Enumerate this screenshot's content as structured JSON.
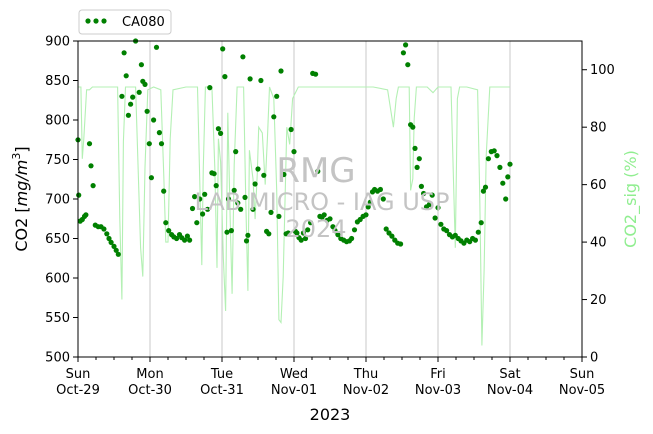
{
  "chart_data": {
    "type": "scatter",
    "xlabel": "2023",
    "ylabel": "CO2 [",
    "ylabel_unit": "mg/m",
    "ylabel_exp": "3",
    "ylabel_close": "]",
    "y2label": "CO2_sig (%)",
    "xlim_days": [
      0,
      7
    ],
    "ylim": [
      500,
      900
    ],
    "y2lim": [
      0,
      110
    ],
    "yticks": [
      500,
      550,
      600,
      650,
      700,
      750,
      800,
      850,
      900
    ],
    "y2ticks": [
      0,
      20,
      40,
      60,
      80,
      100
    ],
    "xticks": [
      {
        "day": "Sun",
        "date": "Oct-29"
      },
      {
        "day": "Mon",
        "date": "Oct-30"
      },
      {
        "day": "Tue",
        "date": "Oct-31"
      },
      {
        "day": "Wed",
        "date": "Nov-01"
      },
      {
        "day": "Thu",
        "date": "Nov-02"
      },
      {
        "day": "Fri",
        "date": "Nov-03"
      },
      {
        "day": "Sat",
        "date": "Nov-04"
      },
      {
        "day": "Sun",
        "date": "Nov-05"
      }
    ],
    "grid": "vertical",
    "legend": {
      "position": "top-left",
      "label": "CA080"
    },
    "series": [
      {
        "name": "CA080",
        "axis": "left",
        "style": "dots",
        "color": "#008000",
        "points": [
          [
            0.0,
            775
          ],
          [
            0.01,
            705
          ],
          [
            0.03,
            672
          ],
          [
            0.06,
            674
          ],
          [
            0.09,
            678
          ],
          [
            0.11,
            680
          ],
          [
            0.16,
            770
          ],
          [
            0.18,
            742
          ],
          [
            0.21,
            717
          ],
          [
            0.24,
            667
          ],
          [
            0.28,
            665
          ],
          [
            0.32,
            665
          ],
          [
            0.36,
            662
          ],
          [
            0.4,
            656
          ],
          [
            0.43,
            650
          ],
          [
            0.46,
            645
          ],
          [
            0.5,
            640
          ],
          [
            0.53,
            635
          ],
          [
            0.56,
            630
          ],
          [
            0.61,
            830
          ],
          [
            0.64,
            885
          ],
          [
            0.67,
            856
          ],
          [
            0.7,
            806
          ],
          [
            0.73,
            820
          ],
          [
            0.76,
            829
          ],
          [
            0.8,
            900
          ],
          [
            0.85,
            835
          ],
          [
            0.88,
            870
          ],
          [
            0.9,
            849
          ],
          [
            0.93,
            845
          ],
          [
            0.96,
            811
          ],
          [
            0.99,
            770
          ],
          [
            1.02,
            727
          ],
          [
            1.05,
            800
          ],
          [
            1.09,
            892
          ],
          [
            1.13,
            784
          ],
          [
            1.16,
            770
          ],
          [
            1.19,
            710
          ],
          [
            1.22,
            670
          ],
          [
            1.26,
            660
          ],
          [
            1.3,
            655
          ],
          [
            1.33,
            652
          ],
          [
            1.37,
            650
          ],
          [
            1.41,
            655
          ],
          [
            1.44,
            651
          ],
          [
            1.48,
            648
          ],
          [
            1.52,
            653
          ],
          [
            1.55,
            648
          ],
          [
            1.59,
            688
          ],
          [
            1.62,
            703
          ],
          [
            1.65,
            670
          ],
          [
            1.69,
            700
          ],
          [
            1.73,
            681
          ],
          [
            1.76,
            706
          ],
          [
            1.8,
            687
          ],
          [
            1.83,
            841
          ],
          [
            1.86,
            733
          ],
          [
            1.89,
            732
          ],
          [
            1.92,
            717
          ],
          [
            1.95,
            789
          ],
          [
            1.98,
            783
          ],
          [
            2.01,
            890
          ],
          [
            2.04,
            855
          ],
          [
            2.07,
            658
          ],
          [
            2.09,
            700
          ],
          [
            2.13,
            660
          ],
          [
            2.17,
            711
          ],
          [
            2.19,
            760
          ],
          [
            2.22,
            695
          ],
          [
            2.26,
            687
          ],
          [
            2.29,
            880
          ],
          [
            2.32,
            702
          ],
          [
            2.34,
            647
          ],
          [
            2.36,
            654
          ],
          [
            2.39,
            852
          ],
          [
            2.43,
            687
          ],
          [
            2.46,
            719
          ],
          [
            2.5,
            738
          ],
          [
            2.54,
            850
          ],
          [
            2.58,
            730
          ],
          [
            2.62,
            659
          ],
          [
            2.65,
            656
          ],
          [
            2.68,
            683
          ],
          [
            2.72,
            804
          ],
          [
            2.76,
            830
          ],
          [
            2.79,
            678
          ],
          [
            2.82,
            862
          ],
          [
            2.86,
            731
          ],
          [
            2.89,
            656
          ],
          [
            2.92,
            657
          ],
          [
            2.96,
            788
          ],
          [
            3.0,
            760
          ],
          [
            3.02,
            659
          ],
          [
            3.04,
            657
          ],
          [
            3.07,
            651
          ],
          [
            3.1,
            648
          ],
          [
            3.13,
            657
          ],
          [
            3.16,
            650
          ],
          [
            3.19,
            661
          ],
          [
            3.23,
            670
          ],
          [
            3.26,
            859
          ],
          [
            3.3,
            858
          ],
          [
            3.33,
            735
          ],
          [
            3.36,
            678
          ],
          [
            3.39,
            677
          ],
          [
            3.42,
            680
          ],
          [
            3.46,
            673
          ],
          [
            3.5,
            675
          ],
          [
            3.54,
            665
          ],
          [
            3.57,
            660
          ],
          [
            3.61,
            655
          ],
          [
            3.65,
            650
          ],
          [
            3.69,
            648
          ],
          [
            3.73,
            646
          ],
          [
            3.77,
            647
          ],
          [
            3.8,
            650
          ],
          [
            3.84,
            661
          ],
          [
            3.88,
            671
          ],
          [
            3.92,
            674
          ],
          [
            3.96,
            678
          ],
          [
            4.0,
            680
          ],
          [
            4.03,
            690
          ],
          [
            4.06,
            696
          ],
          [
            4.09,
            709
          ],
          [
            4.12,
            712
          ],
          [
            4.16,
            710
          ],
          [
            4.2,
            712
          ],
          [
            4.24,
            700
          ],
          [
            4.28,
            662
          ],
          [
            4.32,
            657
          ],
          [
            4.36,
            653
          ],
          [
            4.4,
            648
          ],
          [
            4.44,
            644
          ],
          [
            4.48,
            643
          ],
          [
            4.52,
            885
          ],
          [
            4.55,
            895
          ],
          [
            4.58,
            870
          ],
          [
            4.62,
            794
          ],
          [
            4.65,
            791
          ],
          [
            4.68,
            764
          ],
          [
            4.71,
            740
          ],
          [
            4.74,
            751
          ],
          [
            4.77,
            716
          ],
          [
            4.8,
            707
          ],
          [
            4.84,
            690
          ],
          [
            4.88,
            693
          ],
          [
            4.92,
            705
          ],
          [
            4.96,
            676
          ],
          [
            5.0,
            689
          ],
          [
            5.04,
            668
          ],
          [
            5.08,
            662
          ],
          [
            5.12,
            660
          ],
          [
            5.16,
            655
          ],
          [
            5.2,
            652
          ],
          [
            5.24,
            654
          ],
          [
            5.28,
            650
          ],
          [
            5.32,
            647
          ],
          [
            5.36,
            644
          ],
          [
            5.4,
            648
          ],
          [
            5.44,
            646
          ],
          [
            5.48,
            650
          ],
          [
            5.52,
            648
          ],
          [
            5.56,
            658
          ],
          [
            5.6,
            670
          ],
          [
            5.63,
            710
          ],
          [
            5.66,
            715
          ],
          [
            5.7,
            751
          ],
          [
            5.74,
            760
          ],
          [
            5.78,
            761
          ],
          [
            5.82,
            755
          ],
          [
            5.86,
            740
          ],
          [
            5.9,
            720
          ],
          [
            5.94,
            700
          ],
          [
            5.97,
            728
          ],
          [
            6.0,
            744
          ]
        ]
      },
      {
        "name": "CO2_sig",
        "axis": "right",
        "style": "line",
        "color": "#b4f0b4",
        "points": [
          [
            0.0,
            94
          ],
          [
            0.04,
            94
          ],
          [
            0.06,
            69
          ],
          [
            0.08,
            76
          ],
          [
            0.12,
            93
          ],
          [
            0.16,
            93
          ],
          [
            0.2,
            94
          ],
          [
            0.4,
            94
          ],
          [
            0.55,
            94
          ],
          [
            0.58,
            48
          ],
          [
            0.61,
            20
          ],
          [
            0.63,
            75
          ],
          [
            0.66,
            94
          ],
          [
            0.8,
            94
          ],
          [
            0.87,
            38
          ],
          [
            0.9,
            28
          ],
          [
            0.93,
            66
          ],
          [
            0.97,
            93
          ],
          [
            1.05,
            94
          ],
          [
            1.15,
            93
          ],
          [
            1.19,
            64
          ],
          [
            1.22,
            40
          ],
          [
            1.25,
            40
          ],
          [
            1.28,
            76
          ],
          [
            1.32,
            93
          ],
          [
            1.5,
            94
          ],
          [
            1.66,
            94
          ],
          [
            1.72,
            32
          ],
          [
            1.74,
            66
          ],
          [
            1.77,
            94
          ],
          [
            1.86,
            94
          ],
          [
            1.9,
            66
          ],
          [
            1.93,
            31
          ],
          [
            1.95,
            76
          ],
          [
            1.98,
            68
          ],
          [
            2.02,
            34
          ],
          [
            2.05,
            16
          ],
          [
            2.08,
            85
          ],
          [
            2.12,
            42
          ],
          [
            2.14,
            22
          ],
          [
            2.17,
            67
          ],
          [
            2.21,
            94
          ],
          [
            2.3,
            94
          ],
          [
            2.33,
            54
          ],
          [
            2.36,
            23
          ],
          [
            2.38,
            72
          ],
          [
            2.43,
            62
          ],
          [
            2.46,
            48
          ],
          [
            2.49,
            64
          ],
          [
            2.51,
            80
          ],
          [
            2.56,
            78
          ],
          [
            2.6,
            60
          ],
          [
            2.63,
            76
          ],
          [
            2.66,
            94
          ],
          [
            2.72,
            90
          ],
          [
            2.76,
            58
          ],
          [
            2.79,
            13
          ],
          [
            2.82,
            12
          ],
          [
            2.85,
            28
          ],
          [
            2.88,
            60
          ],
          [
            2.9,
            80
          ],
          [
            2.94,
            74
          ],
          [
            2.98,
            90
          ],
          [
            3.06,
            94
          ],
          [
            3.15,
            94
          ],
          [
            3.22,
            94
          ],
          [
            3.4,
            94
          ],
          [
            3.6,
            94
          ],
          [
            3.8,
            94
          ],
          [
            3.95,
            94
          ],
          [
            4.1,
            94
          ],
          [
            4.3,
            93
          ],
          [
            4.38,
            80
          ],
          [
            4.42,
            90
          ],
          [
            4.45,
            94
          ],
          [
            4.6,
            94
          ],
          [
            4.62,
            58
          ],
          [
            4.65,
            62
          ],
          [
            4.67,
            83
          ],
          [
            4.7,
            94
          ],
          [
            4.85,
            94
          ],
          [
            4.93,
            92
          ],
          [
            5.0,
            94
          ],
          [
            5.18,
            94
          ],
          [
            5.24,
            38
          ],
          [
            5.27,
            90
          ],
          [
            5.3,
            94
          ],
          [
            5.4,
            94
          ],
          [
            5.55,
            93
          ],
          [
            5.58,
            55
          ],
          [
            5.61,
            4
          ],
          [
            5.64,
            30
          ],
          [
            5.67,
            70
          ],
          [
            5.72,
            94
          ],
          [
            5.9,
            94
          ],
          [
            6.0,
            94
          ]
        ]
      }
    ]
  },
  "watermark": {
    "line1": "RMG",
    "line2": "LAB MICRO - IAG USP",
    "line3": "2024"
  }
}
